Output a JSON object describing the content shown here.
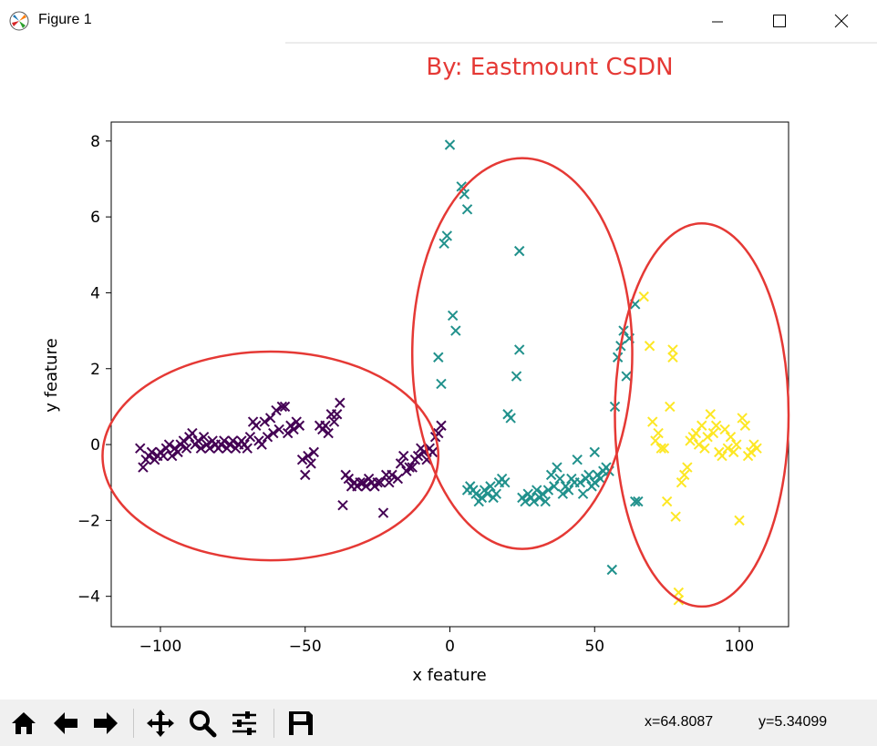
{
  "window": {
    "title": "Figure 1"
  },
  "watermark": "By:  Eastmount CSDN",
  "coords": {
    "x": "x=64.8087",
    "y": "y=5.34099"
  },
  "toolbar": {
    "buttons": [
      "home-icon",
      "back-arrow-icon",
      "forward-arrow-icon",
      "pan-icon",
      "zoom-icon",
      "configure-subplots-icon",
      "save-icon"
    ]
  },
  "colors": {
    "cluster0": "#440154",
    "cluster1": "#21918c",
    "cluster2": "#fde725",
    "annotation": "#e53935"
  },
  "chart_data": {
    "type": "scatter",
    "marker": "x",
    "xlabel": "x feature",
    "ylabel": "y feature",
    "xlim": [
      -117,
      117
    ],
    "ylim": [
      -4.8,
      8.5
    ],
    "xticks": [
      -100,
      -50,
      0,
      50,
      100
    ],
    "xtick_labels": [
      "−100",
      "−50",
      "0",
      "50",
      "100"
    ],
    "yticks": [
      -4,
      -2,
      0,
      2,
      4,
      6,
      8
    ],
    "ytick_labels": [
      "−4",
      "−2",
      "0",
      "2",
      "4",
      "6",
      "8"
    ],
    "grid": false,
    "series": [
      {
        "color": "#440154",
        "points": [
          [
            -107,
            -0.1
          ],
          [
            -106,
            -0.6
          ],
          [
            -105,
            -0.4
          ],
          [
            -104,
            -0.3
          ],
          [
            -103,
            -0.2
          ],
          [
            -102,
            -0.4
          ],
          [
            -101,
            -0.3
          ],
          [
            -100,
            -0.2
          ],
          [
            -99,
            -0.3
          ],
          [
            -98,
            -0.1
          ],
          [
            -97,
            0.0
          ],
          [
            -96,
            -0.3
          ],
          [
            -95,
            -0.1
          ],
          [
            -94,
            -0.2
          ],
          [
            -93,
            0.0
          ],
          [
            -92,
            0.1
          ],
          [
            -91,
            -0.1
          ],
          [
            -90,
            0.2
          ],
          [
            -89,
            0.3
          ],
          [
            -88,
            0.0
          ],
          [
            -87,
            0.1
          ],
          [
            -86,
            -0.1
          ],
          [
            -85,
            0.2
          ],
          [
            -84,
            0.0
          ],
          [
            -83,
            -0.1
          ],
          [
            -82,
            0.1
          ],
          [
            -81,
            0.0
          ],
          [
            -80,
            -0.1
          ],
          [
            -79,
            0.0
          ],
          [
            -78,
            0.1
          ],
          [
            -77,
            -0.1
          ],
          [
            -76,
            0.0
          ],
          [
            -75,
            0.1
          ],
          [
            -74,
            -0.1
          ],
          [
            -73,
            0.0
          ],
          [
            -72,
            0.1
          ],
          [
            -71,
            0.0
          ],
          [
            -70,
            -0.1
          ],
          [
            -69,
            0.2
          ],
          [
            -68,
            0.6
          ],
          [
            -67,
            0.5
          ],
          [
            -66,
            0.1
          ],
          [
            -65,
            0.0
          ],
          [
            -64,
            0.6
          ],
          [
            -63,
            0.2
          ],
          [
            -62,
            0.7
          ],
          [
            -61,
            0.3
          ],
          [
            -60,
            0.9
          ],
          [
            -59,
            0.4
          ],
          [
            -58,
            1.0
          ],
          [
            -57,
            1.0
          ],
          [
            -56,
            0.3
          ],
          [
            -55,
            0.5
          ],
          [
            -54,
            0.4
          ],
          [
            -53,
            0.6
          ],
          [
            -52,
            0.5
          ],
          [
            -51,
            -0.4
          ],
          [
            -50,
            -0.8
          ],
          [
            -49,
            -0.3
          ],
          [
            -48,
            -0.5
          ],
          [
            -47,
            -0.2
          ],
          [
            -45,
            0.5
          ],
          [
            -44,
            0.4
          ],
          [
            -43,
            0.5
          ],
          [
            -42,
            0.3
          ],
          [
            -41,
            0.8
          ],
          [
            -40,
            0.6
          ],
          [
            -39,
            0.8
          ],
          [
            -38,
            1.1
          ],
          [
            -37,
            -1.6
          ],
          [
            -36,
            -0.8
          ],
          [
            -35,
            -0.9
          ],
          [
            -34,
            -1.1
          ],
          [
            -33,
            -1.0
          ],
          [
            -32,
            -1.1
          ],
          [
            -31,
            -1.0
          ],
          [
            -30,
            -1.0
          ],
          [
            -29,
            -1.1
          ],
          [
            -28,
            -0.9
          ],
          [
            -27,
            -1.0
          ],
          [
            -26,
            -1.1
          ],
          [
            -25,
            -1.0
          ],
          [
            -24,
            -1.0
          ],
          [
            -23,
            -1.8
          ],
          [
            -22,
            -0.8
          ],
          [
            -21,
            -1.0
          ],
          [
            -20,
            -0.8
          ],
          [
            -18,
            -0.9
          ],
          [
            -17,
            -0.5
          ],
          [
            -16,
            -0.3
          ],
          [
            -15,
            -0.7
          ],
          [
            -14,
            -0.6
          ],
          [
            -13,
            -0.6
          ],
          [
            -12,
            -0.4
          ],
          [
            -11,
            -0.3
          ],
          [
            -10,
            -0.1
          ],
          [
            -9,
            -0.2
          ],
          [
            -8,
            -0.4
          ],
          [
            -7,
            -0.1
          ],
          [
            -6,
            -0.2
          ],
          [
            -5,
            0.2
          ],
          [
            -4,
            0.3
          ],
          [
            -3,
            0.5
          ]
        ]
      },
      {
        "color": "#21918c",
        "points": [
          [
            0,
            7.9
          ],
          [
            4,
            6.8
          ],
          [
            5,
            6.6
          ],
          [
            6,
            6.2
          ],
          [
            -1,
            5.5
          ],
          [
            -2,
            5.3
          ],
          [
            1,
            3.4
          ],
          [
            2,
            3.0
          ],
          [
            -4,
            2.3
          ],
          [
            -3,
            1.6
          ],
          [
            24,
            5.1
          ],
          [
            24,
            2.5
          ],
          [
            23,
            1.8
          ],
          [
            20,
            0.8
          ],
          [
            21,
            0.7
          ],
          [
            6,
            -1.2
          ],
          [
            7,
            -1.1
          ],
          [
            8,
            -1.2
          ],
          [
            9,
            -1.3
          ],
          [
            10,
            -1.5
          ],
          [
            11,
            -1.4
          ],
          [
            12,
            -1.2
          ],
          [
            13,
            -1.3
          ],
          [
            14,
            -1.1
          ],
          [
            15,
            -1.4
          ],
          [
            16,
            -1.3
          ],
          [
            17,
            -1.0
          ],
          [
            18,
            -0.9
          ],
          [
            19,
            -1.0
          ],
          [
            25,
            -1.4
          ],
          [
            26,
            -1.5
          ],
          [
            27,
            -1.3
          ],
          [
            28,
            -1.4
          ],
          [
            29,
            -1.5
          ],
          [
            30,
            -1.2
          ],
          [
            31,
            -1.4
          ],
          [
            32,
            -1.3
          ],
          [
            33,
            -1.5
          ],
          [
            34,
            -1.2
          ],
          [
            35,
            -0.8
          ],
          [
            36,
            -1.1
          ],
          [
            37,
            -0.6
          ],
          [
            38,
            -0.9
          ],
          [
            39,
            -1.3
          ],
          [
            40,
            -1.1
          ],
          [
            41,
            -1.2
          ],
          [
            42,
            -0.9
          ],
          [
            43,
            -1.0
          ],
          [
            44,
            -0.4
          ],
          [
            45,
            -1.0
          ],
          [
            46,
            -1.3
          ],
          [
            47,
            -0.9
          ],
          [
            48,
            -0.8
          ],
          [
            49,
            -1.1
          ],
          [
            50,
            -1.0
          ],
          [
            51,
            -0.8
          ],
          [
            52,
            -0.9
          ],
          [
            53,
            -0.7
          ],
          [
            54,
            -0.6
          ],
          [
            55,
            -0.7
          ],
          [
            50,
            -0.2
          ],
          [
            57,
            1.0
          ],
          [
            58,
            2.3
          ],
          [
            59,
            2.6
          ],
          [
            60,
            3.0
          ],
          [
            61,
            1.8
          ],
          [
            62,
            2.8
          ],
          [
            64,
            3.7
          ],
          [
            56,
            -3.3
          ],
          [
            64,
            -1.5
          ],
          [
            65,
            -1.5
          ]
        ]
      },
      {
        "color": "#fde725",
        "points": [
          [
            67,
            3.9
          ],
          [
            69,
            2.6
          ],
          [
            70,
            0.6
          ],
          [
            71,
            0.1
          ],
          [
            72,
            0.3
          ],
          [
            73,
            -0.1
          ],
          [
            74,
            -0.1
          ],
          [
            75,
            -1.5
          ],
          [
            76,
            1.0
          ],
          [
            77,
            2.3
          ],
          [
            77,
            2.5
          ],
          [
            78,
            -1.9
          ],
          [
            79,
            -3.9
          ],
          [
            79,
            -4.1
          ],
          [
            80,
            -1.0
          ],
          [
            81,
            -0.8
          ],
          [
            82,
            -0.6
          ],
          [
            83,
            0.1
          ],
          [
            84,
            0.2
          ],
          [
            85,
            0.3
          ],
          [
            86,
            0.0
          ],
          [
            87,
            0.5
          ],
          [
            88,
            -0.1
          ],
          [
            89,
            0.2
          ],
          [
            90,
            0.8
          ],
          [
            91,
            0.3
          ],
          [
            92,
            0.5
          ],
          [
            93,
            -0.2
          ],
          [
            94,
            -0.3
          ],
          [
            95,
            0.4
          ],
          [
            96,
            -0.1
          ],
          [
            97,
            0.2
          ],
          [
            98,
            -0.2
          ],
          [
            99,
            0.0
          ],
          [
            100,
            -2.0
          ],
          [
            101,
            0.7
          ],
          [
            102,
            0.5
          ],
          [
            103,
            -0.3
          ],
          [
            104,
            -0.2
          ],
          [
            105,
            0.0
          ],
          [
            106,
            -0.1
          ]
        ]
      }
    ]
  }
}
